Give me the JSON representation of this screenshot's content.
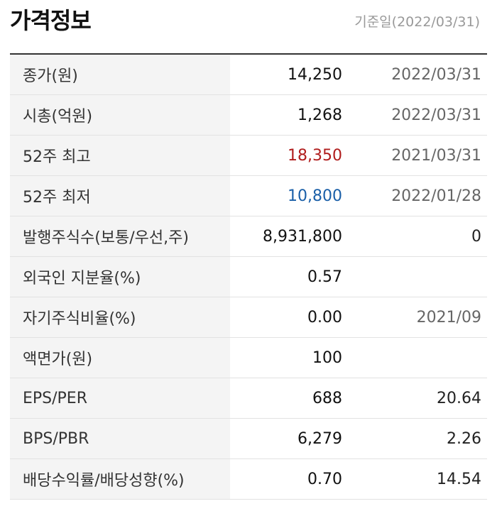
{
  "header": {
    "title": "가격정보",
    "reference_date": "기준일(2022/03/31)"
  },
  "rows": [
    {
      "label": "종가(원)",
      "value": "14,250",
      "extra": "2022/03/31",
      "value_color": "normal",
      "extra_style": "grey"
    },
    {
      "label": "시총(억원)",
      "value": "1,268",
      "extra": "2022/03/31",
      "value_color": "normal",
      "extra_style": "grey"
    },
    {
      "label": "52주 최고",
      "value": "18,350",
      "extra": "2021/03/31",
      "value_color": "red",
      "extra_style": "grey"
    },
    {
      "label": "52주 최저",
      "value": "10,800",
      "extra": "2022/01/28",
      "value_color": "blue",
      "extra_style": "grey"
    },
    {
      "label": "발행주식수(보통/우선,주)",
      "value": "8,931,800",
      "extra": "0",
      "value_color": "normal",
      "extra_style": "dark"
    },
    {
      "label": "외국인 지분율(%)",
      "value": "0.57",
      "extra": "",
      "value_color": "normal",
      "extra_style": "grey"
    },
    {
      "label": "자기주식비율(%)",
      "value": "0.00",
      "extra": "2021/09",
      "value_color": "normal",
      "extra_style": "grey"
    },
    {
      "label": "액면가(원)",
      "value": "100",
      "extra": "",
      "value_color": "normal",
      "extra_style": "grey"
    },
    {
      "label": "EPS/PER",
      "value": "688",
      "extra": "20.64",
      "value_color": "normal",
      "extra_style": "dark"
    },
    {
      "label": "BPS/PBR",
      "value": "6,279",
      "extra": "2.26",
      "value_color": "normal",
      "extra_style": "dark"
    },
    {
      "label": "배당수익률/배당성향(%)",
      "value": "0.70",
      "extra": "14.54",
      "value_color": "normal",
      "extra_style": "dark"
    }
  ],
  "colors": {
    "up": "#b01c1c",
    "down": "#1a5fa8"
  }
}
